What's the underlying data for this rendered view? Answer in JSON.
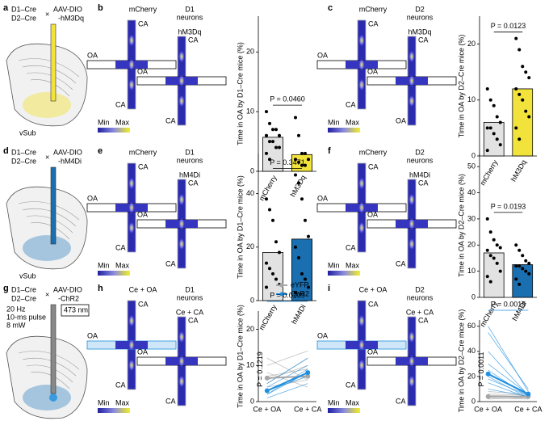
{
  "diagrams": [
    {
      "letter": "a",
      "lines": [
        "D1–Cre",
        "D2–Cre"
      ],
      "cross": "×",
      "virus": [
        "AAV-DIO",
        "-hM3Dq"
      ],
      "region": "vSub"
    },
    {
      "letter": "d",
      "lines": [
        "D1–Cre",
        "D2–Cre"
      ],
      "cross": "×",
      "virus": [
        "AAV-DIO",
        "-hM4Di"
      ],
      "region": "vSub"
    },
    {
      "letter": "g",
      "lines": [
        "D1–Cre",
        "D2–Cre"
      ],
      "cross": "×",
      "virus": [
        "AAV-DIO",
        "-ChR2"
      ],
      "region": "vSub",
      "stim": [
        "20 Hz",
        "10-ms pulse",
        "8 mW"
      ],
      "laser": "473 nm"
    }
  ],
  "mazes": [
    {
      "letter": "b",
      "title": [
        "D1",
        "neurons"
      ],
      "left": "mCherry",
      "right": "hM3Dq",
      "left_arms": [
        "OA",
        "CA",
        "CA"
      ],
      "right_arms": [
        "OA",
        "CA",
        "CA"
      ],
      "min": "Min",
      "max": "Max"
    },
    {
      "letter": "c",
      "title": [
        "D2",
        "neurons"
      ],
      "left": "mCherry",
      "right": "hM3Dq",
      "left_arms": [
        "OA",
        "CA",
        "CA"
      ],
      "right_arms": [
        "OA",
        "CA",
        "OA"
      ],
      "min": "Min",
      "max": "Max"
    },
    {
      "letter": "e",
      "title": [
        "D1",
        "neurons"
      ],
      "left": "mCherry",
      "right": "hM4Di",
      "left_arms": [
        "OA",
        "CA",
        "CA"
      ],
      "right_arms": [
        "OA",
        "CA",
        "CA"
      ],
      "min": "Min",
      "max": "Max"
    },
    {
      "letter": "f",
      "title": [
        "D2",
        "neurons"
      ],
      "left": "mCherry",
      "right": "hM4Di",
      "left_arms": [
        "OA",
        "CA",
        "CA"
      ],
      "right_arms": [
        "OA",
        "CA",
        "CA"
      ],
      "min": "Min",
      "max": "Max"
    },
    {
      "letter": "h",
      "title": [
        "D1",
        "neurons"
      ],
      "left": "Ce + OA",
      "right": "Ce + CA",
      "left_arms": [
        "OA",
        "CA",
        "CA"
      ],
      "right_arms": [
        "OA",
        "CA",
        "CA"
      ],
      "min": "Min",
      "max": "Max"
    },
    {
      "letter": "i",
      "title": [
        "D2",
        "neurons"
      ],
      "left": "Ce + OA",
      "right": "Ce + CA",
      "left_arms": [
        "OA",
        "CA",
        "CA"
      ],
      "right_arms": [
        "OA",
        "CA",
        "CA"
      ],
      "min": "Min",
      "max": "Max"
    }
  ],
  "chart_data": [
    {
      "type": "bar",
      "ylabel": "Time in OA by D1–Cre mice (%)",
      "categories": [
        "mCherry",
        "hM3Dq"
      ],
      "values": [
        5.7,
        2.8
      ],
      "colors": [
        "#e2e2e2",
        "#f2e33c"
      ],
      "points": [
        [
          10,
          8,
          7,
          7,
          6,
          6,
          5,
          5,
          4,
          4,
          3,
          2
        ],
        [
          9,
          6,
          3,
          3,
          2,
          2,
          1.5,
          1,
          1
        ]
      ],
      "ylim": [
        0,
        26
      ],
      "yticks": [
        0,
        10,
        20
      ],
      "annotation": "P = 0.0460"
    },
    {
      "type": "bar",
      "ylabel": "Time in OA by D2–Cre mice (%)",
      "categories": [
        "mCherry",
        "hM3Dq"
      ],
      "values": [
        6,
        12
      ],
      "colors": [
        "#e2e2e2",
        "#f2e33c"
      ],
      "points": [
        [
          12,
          10,
          9,
          7,
          6,
          5,
          5,
          4,
          3,
          2,
          1
        ],
        [
          21,
          19,
          16,
          15,
          14,
          12,
          11,
          10,
          8,
          7,
          5,
          3
        ]
      ],
      "ylim": [
        0,
        25
      ],
      "yticks": [
        0,
        10,
        20
      ],
      "annotation": "P = 0.0123"
    },
    {
      "type": "bar",
      "ylabel": "Time in OA by D1–Cre mice (%)",
      "categories": [
        "mCherry",
        "hM4Di"
      ],
      "values": [
        18,
        23
      ],
      "colors": [
        "#e2e2e2",
        "#1a6fb0"
      ],
      "points": [
        [
          38,
          34,
          30,
          22,
          18,
          14,
          12,
          10,
          8,
          6,
          5
        ],
        [
          47,
          44,
          38,
          30,
          24,
          20,
          16,
          10,
          8,
          5,
          3
        ]
      ],
      "ylim": [
        0,
        55
      ],
      "yticks": [
        0,
        20,
        40
      ],
      "annotation": "P = 0.3471"
    },
    {
      "type": "bar",
      "ylabel": "Time in OA by D2–Cre mice (%)",
      "categories": [
        "mCherry",
        "hM4Di"
      ],
      "values": [
        17,
        12.5
      ],
      "colors": [
        "#e2e2e2",
        "#1a6fb0"
      ],
      "points": [
        [
          30,
          25,
          22,
          20,
          19,
          18,
          16,
          15,
          13,
          10,
          8,
          6
        ],
        [
          20,
          18,
          16,
          14,
          13,
          12,
          12,
          11,
          10,
          9,
          7,
          5
        ]
      ],
      "ylim": [
        0,
        55
      ],
      "yticks": [
        0,
        10,
        20,
        30,
        40,
        50
      ],
      "annotation": "P = 0.0193"
    },
    {
      "type": "line",
      "ylabel": "Time in OA by D1–Cre mice (%)",
      "categories": [
        "Ce + OA",
        "Ce + CA"
      ],
      "ylim": [
        0,
        25
      ],
      "yticks": [
        0,
        10,
        20
      ],
      "series": [
        {
          "name": "eYFP",
          "color": "#a6a6a6",
          "values": [
            6.5,
            7
          ],
          "individual": [
            [
              7,
              9
            ],
            [
              5,
              12
            ],
            [
              10,
              14
            ],
            [
              4,
              6
            ],
            [
              8,
              4
            ],
            [
              6,
              10
            ],
            [
              3,
              7
            ],
            [
              12,
              6
            ]
          ]
        },
        {
          "name": "ChR2",
          "color": "#1e8fe0",
          "values": [
            3,
            8
          ],
          "individual": [
            [
              2,
              8
            ],
            [
              4,
              10
            ],
            [
              1,
              5
            ],
            [
              3,
              7
            ],
            [
              5,
              12
            ],
            [
              2,
              9
            ]
          ]
        }
      ],
      "annotations": [
        {
          "text": "P = 0.0109",
          "color": "#1e8fe0"
        },
        {
          "text": "P = 0.1219",
          "color": "#666666"
        }
      ]
    },
    {
      "type": "line",
      "ylabel": "Time in OA by D2–Cre mice (%)",
      "categories": [
        "Ce + OA",
        "Ce + CA"
      ],
      "ylim": [
        0,
        65
      ],
      "yticks": [
        0,
        20,
        40,
        60
      ],
      "series": [
        {
          "name": "eYFP",
          "color": "#a6a6a6",
          "values": [
            4,
            4
          ],
          "individual": [
            [
              5,
              4
            ],
            [
              3,
              2
            ],
            [
              8,
              6
            ],
            [
              2,
              3
            ],
            [
              6,
              5
            ],
            [
              4,
              3
            ]
          ]
        },
        {
          "name": "ChR2",
          "color": "#1e8fe0",
          "values": [
            22,
            6
          ],
          "individual": [
            [
              60,
              8
            ],
            [
              55,
              10
            ],
            [
              40,
              5
            ],
            [
              30,
              6
            ],
            [
              25,
              4
            ],
            [
              20,
              3
            ],
            [
              18,
              5
            ],
            [
              15,
              3
            ],
            [
              10,
              4
            ]
          ]
        }
      ],
      "annotations": [
        {
          "text": "P = 0.0015",
          "color": "#1e8fe0"
        },
        {
          "text": "P = 0.0011",
          "color": "#666666"
        }
      ]
    }
  ]
}
